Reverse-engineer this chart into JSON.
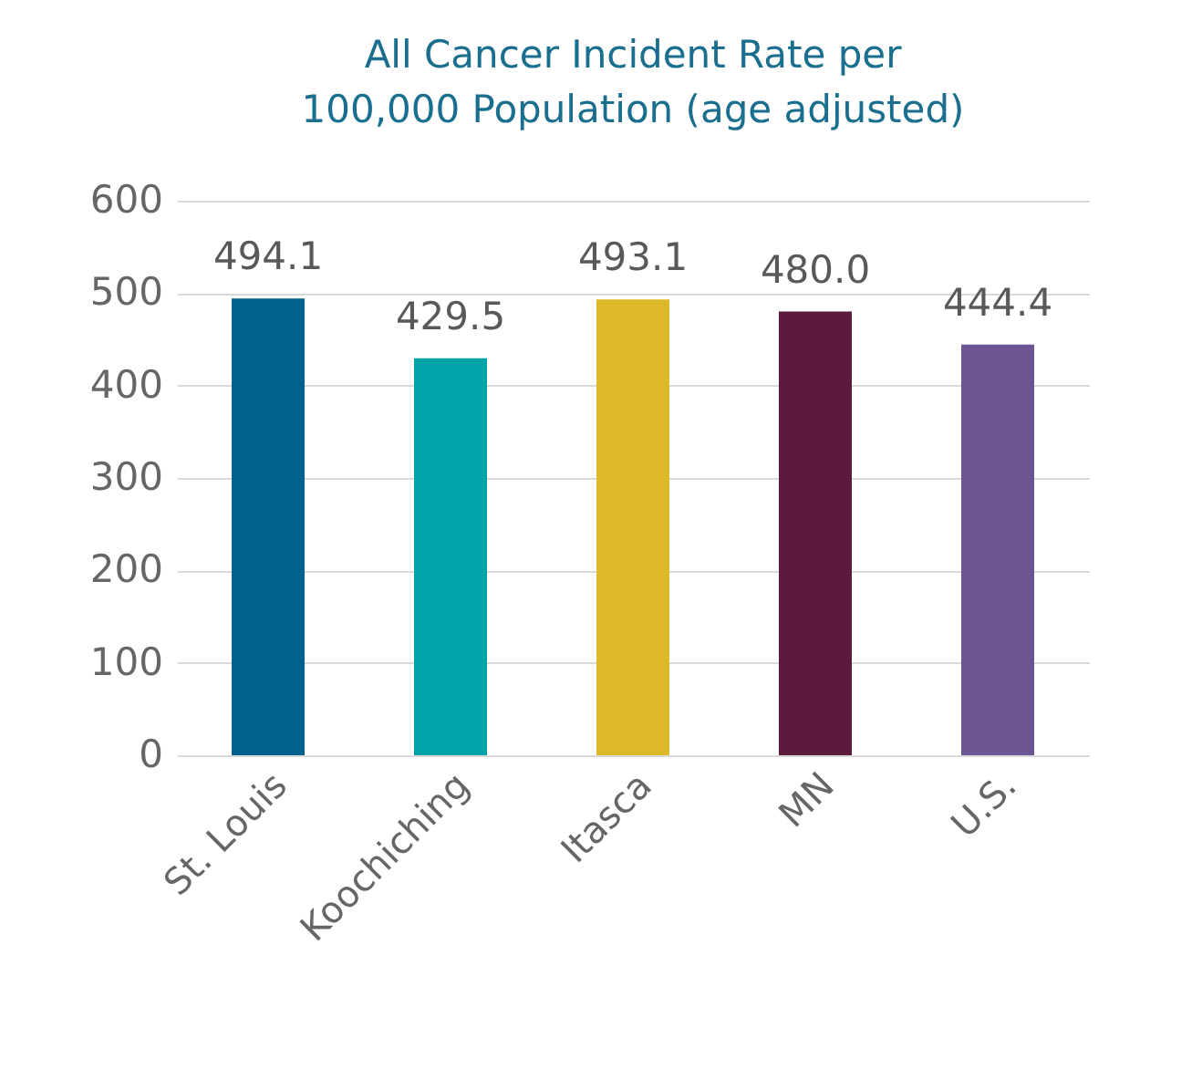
{
  "chart_data": {
    "type": "bar",
    "title": "All Cancer Incident Rate per 100,000 Population (age adjusted)",
    "categories": [
      "St. Louis",
      "Koochiching",
      "Itasca",
      "MN",
      "U.S."
    ],
    "values": [
      494.1,
      429.5,
      493.1,
      480.0,
      444.4
    ],
    "value_labels": [
      "494.1",
      "429.5",
      "493.1",
      "480.0",
      "444.4"
    ],
    "colors": [
      "#00628b",
      "#00a4a8",
      "#ddb927",
      "#5c1a3e",
      "#6d5594"
    ],
    "ylim": [
      0,
      600
    ],
    "yticks": [
      0,
      100,
      200,
      300,
      400,
      500,
      600
    ],
    "grid": "y"
  }
}
